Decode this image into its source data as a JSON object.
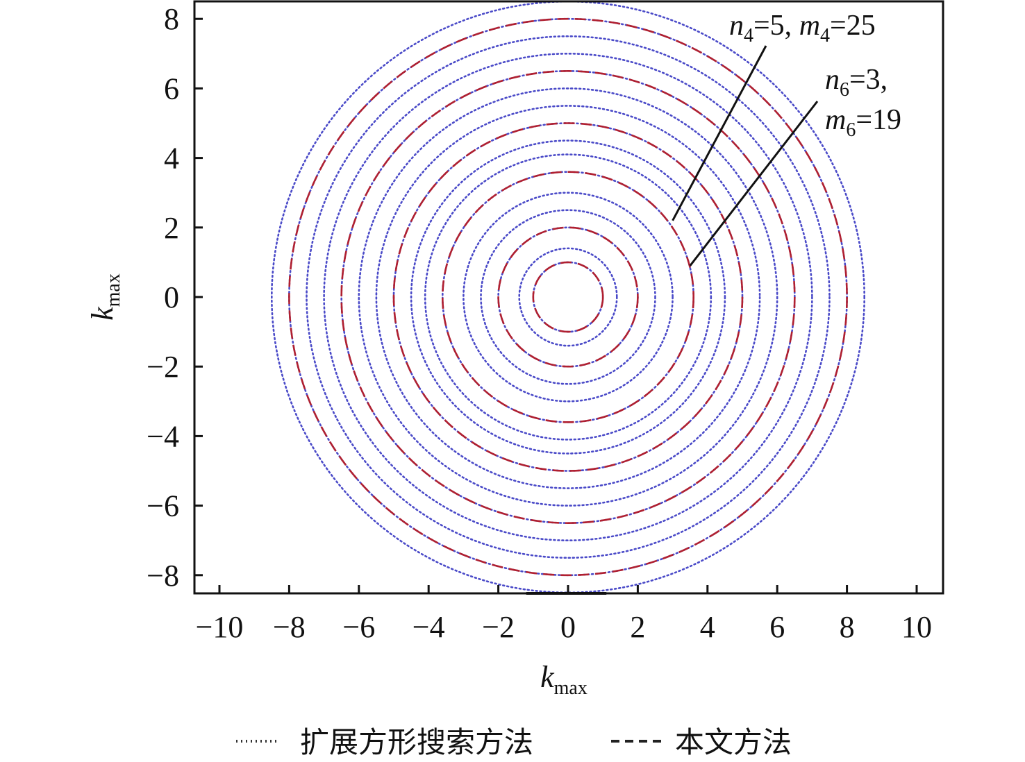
{
  "chart_data": {
    "type": "line",
    "xlabel": {
      "main": "k",
      "sub": "max"
    },
    "ylabel": {
      "main": "k",
      "sub": "max"
    },
    "xlim": [
      -10.7,
      10.7
    ],
    "ylim": [
      -8.5,
      8.5
    ],
    "xticks": [
      -10,
      -8,
      -6,
      -4,
      -2,
      0,
      2,
      4,
      6,
      8,
      10
    ],
    "yticks": [
      -8,
      -6,
      -4,
      -2,
      0,
      2,
      4,
      6,
      8
    ],
    "xtick_labels": [
      "−10",
      "−8",
      "−6",
      "−4",
      "−2",
      "0",
      "2",
      "4",
      "6",
      "8",
      "10"
    ],
    "ytick_labels": [
      "−8",
      "−6",
      "−4",
      "−2",
      "0",
      "2",
      "4",
      "6",
      "8"
    ],
    "grid": false,
    "legend_position": "bottom",
    "series": [
      {
        "name": "扩展方形搜索方法",
        "style": "dotted",
        "color": "#4a4ac8",
        "circle_radii": [
          1.0,
          1.4,
          2.0,
          2.5,
          3.0,
          3.6,
          4.1,
          4.5,
          5.0,
          5.5,
          6.0,
          6.5,
          7.0,
          7.5,
          8.0,
          8.5
        ]
      },
      {
        "name": "本文方法",
        "style": "dashed",
        "color": "#b02030",
        "circle_radii": [
          1.0,
          2.0,
          3.6,
          5.0,
          6.5,
          8.0
        ]
      }
    ],
    "annotations": [
      {
        "parts": [
          {
            "t": "n",
            "italic": true
          },
          {
            "t": "4",
            "sub": true
          },
          {
            "t": "=5, "
          },
          {
            "t": "m",
            "italic": true
          },
          {
            "t": "4",
            "sub": true
          },
          {
            "t": "=25"
          }
        ],
        "target": [
          3.0,
          2.2
        ]
      },
      {
        "parts": [
          {
            "t": "n",
            "italic": true
          },
          {
            "t": "6",
            "sub": true
          },
          {
            "t": "=3,"
          }
        ],
        "target": [
          3.5,
          0.9
        ]
      },
      {
        "parts": [
          {
            "t": "m",
            "italic": true
          },
          {
            "t": "6",
            "sub": true
          },
          {
            "t": "=19"
          }
        ]
      }
    ],
    "colors": {
      "axis": "#111111",
      "dotted": "#4a4ac8",
      "dashed": "#b02030"
    }
  }
}
